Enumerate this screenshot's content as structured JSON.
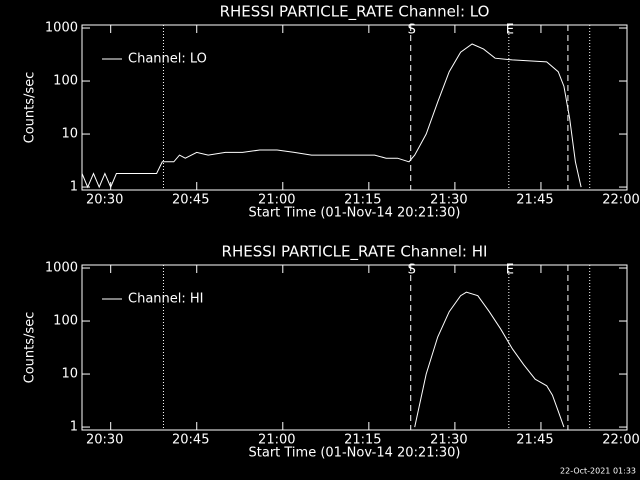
{
  "chart_data": [
    {
      "type": "line",
      "title": "RHESSI PARTICLE_RATE Channel: LO",
      "xlabel": "Start Time (01-Nov-14 20:21:30)",
      "ylabel": "Counts/sec",
      "log_y": true,
      "xlim": [
        1225,
        1320
      ],
      "ylim": [
        0.88,
        1140
      ],
      "xticks": [
        {
          "value": 1230,
          "label": "20:30"
        },
        {
          "value": 1245,
          "label": "20:45"
        },
        {
          "value": 1260,
          "label": "21:00"
        },
        {
          "value": 1275,
          "label": "21:15"
        },
        {
          "value": 1290,
          "label": "21:30"
        },
        {
          "value": 1305,
          "label": "21:45"
        },
        {
          "value": 1320,
          "label": "22:00"
        }
      ],
      "yticks": [
        1,
        10,
        100,
        1000
      ],
      "markers": [
        {
          "x": 1239.2,
          "style": "dotted"
        },
        {
          "x": 1282.3,
          "style": "dashed",
          "label": "S"
        },
        {
          "x": 1299.4,
          "style": "dotted",
          "label": "E"
        },
        {
          "x": 1309.7,
          "style": "dashed"
        },
        {
          "x": 1313.5,
          "style": "dotted"
        }
      ],
      "x": [
        1225,
        1226,
        1227,
        1228,
        1229,
        1230,
        1231,
        1232,
        1234,
        1236,
        1238,
        1239,
        1241,
        1242,
        1243,
        1245,
        1247,
        1250,
        1253,
        1256,
        1259,
        1262,
        1265,
        1268,
        1271,
        1274,
        1276,
        1278,
        1280,
        1282,
        1283,
        1285,
        1287,
        1289,
        1291,
        1293,
        1295,
        1297,
        1300,
        1303,
        1306,
        1308,
        1309,
        1310,
        1311,
        1312
      ],
      "series": [
        {
          "name": "Channel: LO",
          "color": "#ffffff",
          "values": [
            1.8,
            1,
            1.8,
            1,
            1.8,
            1,
            1.8,
            1.8,
            1.8,
            1.8,
            1.8,
            3,
            3,
            4,
            3.5,
            4.5,
            4,
            4.5,
            4.5,
            5,
            5,
            4.5,
            4,
            4,
            4,
            4,
            4,
            3.5,
            3.5,
            3,
            4,
            10,
            40,
            150,
            350,
            500,
            400,
            270,
            250,
            240,
            230,
            150,
            80,
            20,
            3,
            1
          ]
        }
      ]
    },
    {
      "type": "line",
      "title": "RHESSI PARTICLE_RATE Channel: HI",
      "xlabel": "Start Time (01-Nov-14 20:21:30)",
      "ylabel": "Counts/sec",
      "log_y": true,
      "xlim": [
        1225,
        1320
      ],
      "ylim": [
        0.88,
        1140
      ],
      "xticks": [
        {
          "value": 1230,
          "label": "20:30"
        },
        {
          "value": 1245,
          "label": "20:45"
        },
        {
          "value": 1260,
          "label": "21:00"
        },
        {
          "value": 1275,
          "label": "21:15"
        },
        {
          "value": 1290,
          "label": "21:30"
        },
        {
          "value": 1305,
          "label": "21:45"
        },
        {
          "value": 1320,
          "label": "22:00"
        }
      ],
      "yticks": [
        1,
        10,
        100,
        1000
      ],
      "markers": [
        {
          "x": 1239.2,
          "style": "dotted"
        },
        {
          "x": 1282.3,
          "style": "dashed",
          "label": "S"
        },
        {
          "x": 1299.4,
          "style": "dotted",
          "label": "E"
        },
        {
          "x": 1309.7,
          "style": "dashed"
        },
        {
          "x": 1313.5,
          "style": "dotted"
        }
      ],
      "x": [
        1283,
        1285,
        1287,
        1289,
        1291,
        1292,
        1294,
        1296,
        1298,
        1300,
        1302,
        1304,
        1306,
        1307,
        1308,
        1309
      ],
      "series": [
        {
          "name": "Channel: HI",
          "color": "#ffffff",
          "values": [
            1,
            10,
            50,
            150,
            300,
            350,
            300,
            150,
            70,
            30,
            15,
            8,
            6,
            4,
            2,
            1
          ]
        }
      ]
    }
  ],
  "footer": "22-Oct-2021 01:33"
}
